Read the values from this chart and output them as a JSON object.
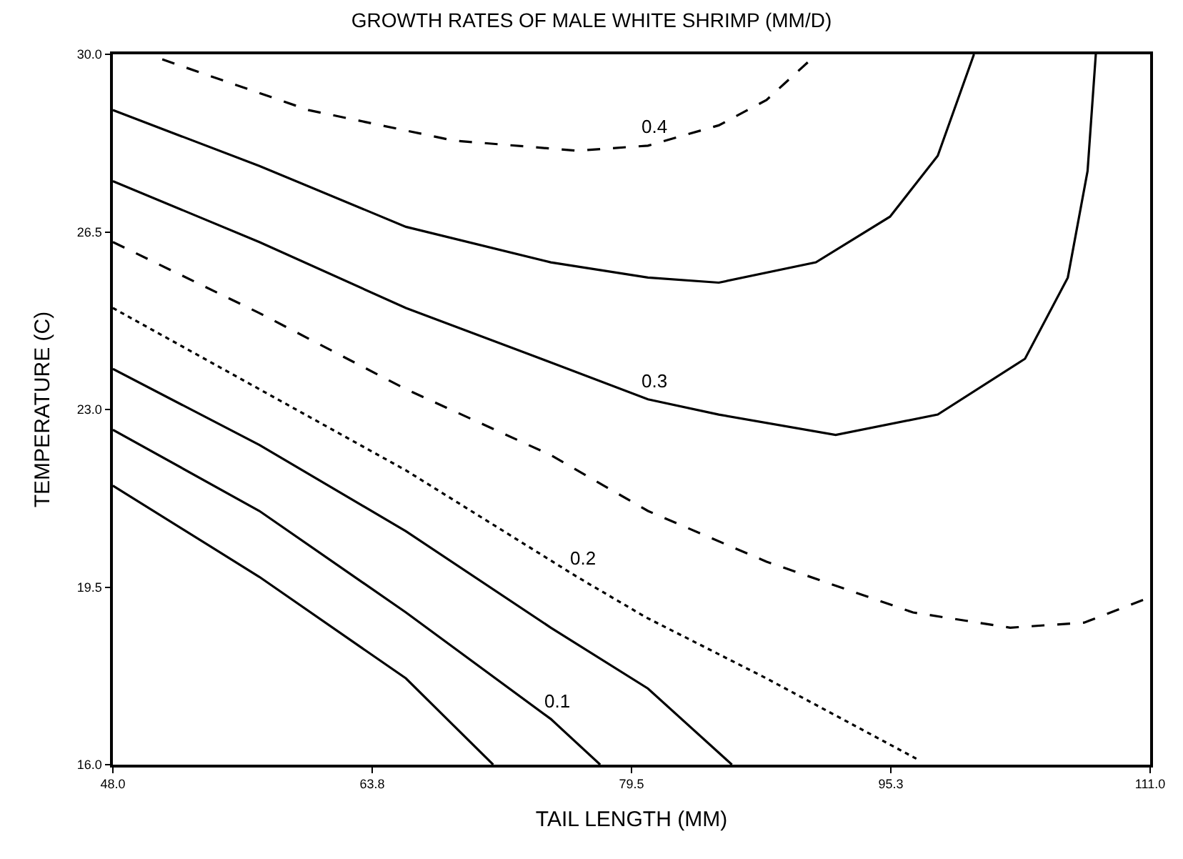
{
  "chart_data": {
    "type": "line",
    "title": "GROWTH RATES OF MALE WHITE SHRIMP (MM/D)",
    "xlabel": "TAIL LENGTH (MM)",
    "ylabel": "TEMPERATURE (C)",
    "xlim": [
      48,
      111
    ],
    "ylim": [
      16,
      30
    ],
    "xticks": [
      {
        "value": 48,
        "label": "48.0"
      },
      {
        "value": 63.75,
        "label": "63.8"
      },
      {
        "value": 79.5,
        "label": "79.5"
      },
      {
        "value": 95.25,
        "label": "95.3"
      },
      {
        "value": 111,
        "label": "111.0"
      }
    ],
    "yticks": [
      {
        "value": 16,
        "label": "16.0"
      },
      {
        "value": 19.5,
        "label": "19.5"
      },
      {
        "value": 23,
        "label": "23.0"
      },
      {
        "value": 26.5,
        "label": "26.5"
      },
      {
        "value": 30,
        "label": "30.0"
      }
    ],
    "marker": "none",
    "series": [
      {
        "color": "#000000",
        "line_style": "dashed",
        "x": [
          51.0,
          59.9,
          68.7,
          76.2,
          80.5,
          84.8,
          87.7,
          90.4,
          90.5
        ],
        "values": [
          29.9,
          28.9,
          28.3,
          28.1,
          28.2,
          28.6,
          29.1,
          29.9,
          30.0
        ]
      },
      {
        "color": "#000000",
        "line_style": "solid",
        "x": [
          48.0,
          56.9,
          65.8,
          74.6,
          80.5,
          84.8,
          90.7,
          95.2,
          98.1,
          100.3
        ],
        "values": [
          28.9,
          27.8,
          26.6,
          25.9,
          25.6,
          25.5,
          25.9,
          26.8,
          28.0,
          30.0
        ]
      },
      {
        "color": "#000000",
        "line_style": "solid",
        "x": [
          48.0,
          56.9,
          65.8,
          73.2,
          80.5,
          84.8,
          91.9,
          98.1,
          103.4,
          106.0,
          107.2,
          107.7
        ],
        "values": [
          27.5,
          26.3,
          25.0,
          24.1,
          23.2,
          22.9,
          22.5,
          22.9,
          24.0,
          25.6,
          27.7,
          30.0
        ]
      },
      {
        "color": "#000000",
        "line_style": "dashed",
        "x": [
          48.0,
          56.9,
          65.8,
          74.6,
          80.5,
          87.7,
          96.6,
          102.5,
          107.0,
          111.0
        ],
        "values": [
          26.3,
          24.9,
          23.4,
          22.1,
          21.0,
          20.0,
          19.0,
          18.7,
          18.8,
          19.3
        ]
      },
      {
        "color": "#000000",
        "line_style": "dotted",
        "x": [
          48.0,
          56.9,
          65.8,
          76.2,
          80.4,
          87.7,
          96.9
        ],
        "values": [
          25.0,
          23.4,
          21.8,
          19.7,
          18.9,
          17.7,
          16.1
        ]
      },
      {
        "color": "#000000",
        "line_style": "solid",
        "x": [
          48.0,
          56.9,
          65.8,
          74.6,
          80.5,
          85.6
        ],
        "values": [
          23.8,
          22.3,
          20.6,
          18.7,
          17.5,
          16.0
        ]
      },
      {
        "color": "#000000",
        "line_style": "solid",
        "x": [
          48.0,
          56.9,
          65.8,
          74.6,
          77.6
        ],
        "values": [
          22.6,
          21.0,
          19.0,
          16.9,
          16.0
        ]
      },
      {
        "color": "#000000",
        "line_style": "solid",
        "x": [
          48.0,
          56.9,
          65.8,
          71.1
        ],
        "values": [
          21.5,
          19.7,
          17.7,
          16.0
        ]
      }
    ],
    "annotations": [
      {
        "text": "0.4",
        "x": 80.5,
        "y": 28.2
      },
      {
        "text": "0.3",
        "x": 80.5,
        "y": 23.2
      },
      {
        "text": "0.2",
        "x": 76.2,
        "y": 19.7
      },
      {
        "text": "0.1",
        "x": 74.6,
        "y": 16.9
      }
    ]
  }
}
